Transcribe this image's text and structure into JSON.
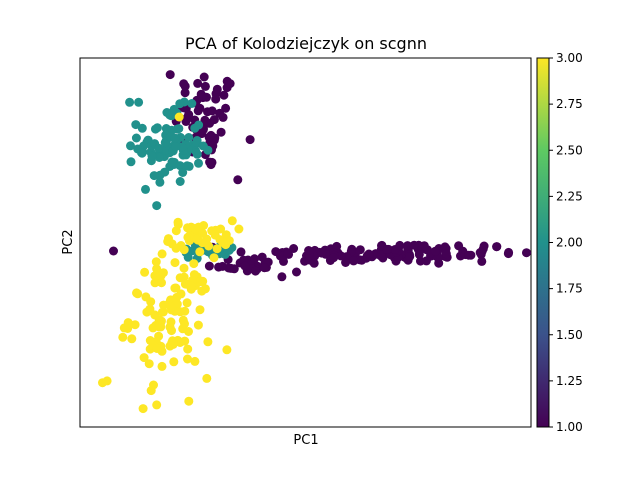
{
  "chart_data": {
    "type": "scatter",
    "title": "PCA of Kolodziejczyk on scgnn",
    "xlabel": "PC1",
    "ylabel": "PC2",
    "x_ticks_shown": false,
    "y_ticks_shown": false,
    "grid": false,
    "legend": "none",
    "colorbar": {
      "range": [
        1.0,
        3.0
      ],
      "ticks": [
        "1.00",
        "1.25",
        "1.50",
        "1.75",
        "2.00",
        "2.25",
        "2.50",
        "2.75",
        "3.00"
      ],
      "colormap": "viridis",
      "colors": [
        "#440154",
        "#3b528b",
        "#21918c",
        "#5ec962",
        "#fde725"
      ]
    },
    "groups": [
      {
        "value": 1,
        "color": "#440154",
        "clusters": [
          {
            "cx": 0.28,
            "cy": 0.83,
            "sx": 0.035,
            "sy": 0.07,
            "n": 60
          },
          {
            "cx": 0.36,
            "cy": 0.44,
            "sx": 0.04,
            "sy": 0.01,
            "n": 25
          },
          {
            "cx": 0.68,
            "cy": 0.47,
            "sx": 0.15,
            "sy": 0.015,
            "n": 130
          }
        ],
        "extra_points": [
          [
            0.2,
            0.955
          ],
          [
            0.23,
            0.93
          ],
          [
            0.35,
            0.67
          ],
          [
            0.95,
            0.47
          ],
          [
            0.46,
            0.47
          ],
          [
            0.48,
            0.42
          ]
        ]
      },
      {
        "value": 2,
        "color": "#21918c",
        "clusters": [
          {
            "cx": 0.2,
            "cy": 0.76,
            "sx": 0.035,
            "sy": 0.05,
            "n": 90
          },
          {
            "cx": 0.29,
            "cy": 0.48,
            "sx": 0.04,
            "sy": 0.01,
            "n": 25
          }
        ],
        "extra_points": [
          [
            0.11,
            0.88
          ],
          [
            0.13,
            0.88
          ],
          [
            0.17,
            0.6
          ],
          [
            0.24,
            0.46
          ]
        ]
      },
      {
        "value": 3,
        "color": "#fde725",
        "clusters": [
          {
            "cx": 0.27,
            "cy": 0.52,
            "sx": 0.035,
            "sy": 0.02,
            "n": 40
          },
          {
            "cx": 0.2,
            "cy": 0.3,
            "sx": 0.045,
            "sy": 0.08,
            "n": 110
          }
        ],
        "extra_points": [
          [
            0.05,
            0.12
          ],
          [
            0.06,
            0.125
          ],
          [
            0.14,
            0.05
          ],
          [
            0.17,
            0.06
          ],
          [
            0.22,
            0.84
          ]
        ]
      }
    ]
  }
}
